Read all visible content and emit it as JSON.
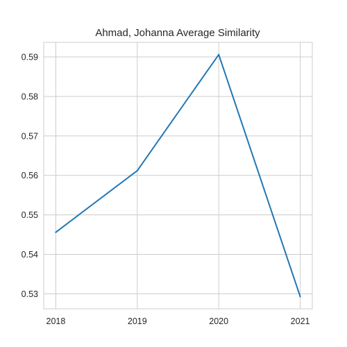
{
  "chart_data": {
    "type": "line",
    "title": "Ahmad, Johanna Average Similarity",
    "xlabel": "",
    "ylabel": "",
    "x": [
      "2018",
      "2019",
      "2020",
      "2021"
    ],
    "series": [
      {
        "values": [
          0.5456,
          0.5612,
          0.5906,
          0.5293
        ],
        "color": "#1f77b4"
      }
    ],
    "yticks": [
      0.53,
      0.54,
      0.55,
      0.56,
      0.57,
      0.58,
      0.59
    ],
    "ytick_labels": [
      "0.53",
      "0.54",
      "0.55",
      "0.56",
      "0.57",
      "0.58",
      "0.59"
    ],
    "ylim": [
      0.5262,
      0.5937
    ],
    "grid": true,
    "legend": "none"
  }
}
